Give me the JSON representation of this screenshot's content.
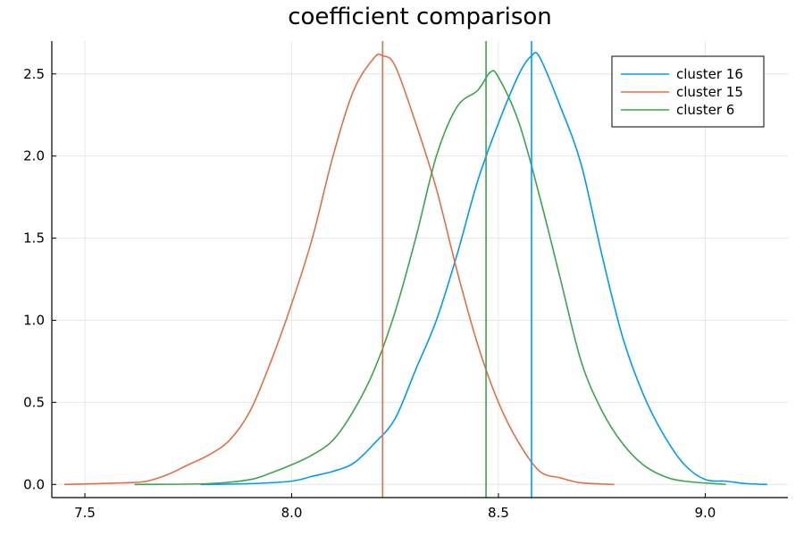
{
  "chart_data": {
    "type": "line",
    "title": "coefficient comparison",
    "xlabel": "",
    "ylabel": "",
    "xlim": [
      7.42,
      9.2
    ],
    "ylim": [
      -0.08,
      2.7
    ],
    "xticks": [
      7.5,
      8.0,
      8.5,
      9.0
    ],
    "xtick_labels": [
      "7.5",
      "8.0",
      "8.5",
      "9.0"
    ],
    "yticks": [
      0.0,
      0.5,
      1.0,
      1.5,
      2.0,
      2.5
    ],
    "ytick_labels": [
      "0.0",
      "0.5",
      "1.0",
      "1.5",
      "2.0",
      "2.5"
    ],
    "grid": true,
    "legend_position": "top-right",
    "series": [
      {
        "name": "cluster 16",
        "color": "#009AFA",
        "vline": 8.58,
        "points": [
          [
            7.78,
            0.0
          ],
          [
            7.9,
            0.005
          ],
          [
            8.0,
            0.02
          ],
          [
            8.05,
            0.05
          ],
          [
            8.1,
            0.08
          ],
          [
            8.15,
            0.13
          ],
          [
            8.2,
            0.25
          ],
          [
            8.25,
            0.4
          ],
          [
            8.3,
            0.7
          ],
          [
            8.35,
            1.0
          ],
          [
            8.4,
            1.4
          ],
          [
            8.45,
            1.85
          ],
          [
            8.5,
            2.2
          ],
          [
            8.55,
            2.5
          ],
          [
            8.58,
            2.61
          ],
          [
            8.6,
            2.6
          ],
          [
            8.65,
            2.3
          ],
          [
            8.7,
            1.95
          ],
          [
            8.75,
            1.4
          ],
          [
            8.8,
            0.9
          ],
          [
            8.85,
            0.55
          ],
          [
            8.9,
            0.3
          ],
          [
            8.95,
            0.12
          ],
          [
            9.0,
            0.03
          ],
          [
            9.05,
            0.02
          ],
          [
            9.1,
            0.005
          ],
          [
            9.15,
            0.0
          ]
        ]
      },
      {
        "name": "cluster 15",
        "color": "#E26F46",
        "vline": 8.22,
        "points": [
          [
            7.45,
            0.0
          ],
          [
            7.6,
            0.01
          ],
          [
            7.65,
            0.02
          ],
          [
            7.7,
            0.06
          ],
          [
            7.75,
            0.12
          ],
          [
            7.8,
            0.18
          ],
          [
            7.85,
            0.27
          ],
          [
            7.9,
            0.45
          ],
          [
            7.95,
            0.75
          ],
          [
            8.0,
            1.1
          ],
          [
            8.05,
            1.5
          ],
          [
            8.1,
            2.0
          ],
          [
            8.15,
            2.4
          ],
          [
            8.2,
            2.6
          ],
          [
            8.22,
            2.61
          ],
          [
            8.25,
            2.55
          ],
          [
            8.3,
            2.2
          ],
          [
            8.35,
            1.8
          ],
          [
            8.4,
            1.3
          ],
          [
            8.45,
            0.85
          ],
          [
            8.5,
            0.5
          ],
          [
            8.55,
            0.25
          ],
          [
            8.6,
            0.08
          ],
          [
            8.65,
            0.04
          ],
          [
            8.7,
            0.01
          ],
          [
            8.78,
            0.0
          ]
        ]
      },
      {
        "name": "cluster 6",
        "color": "#3DA44D",
        "vline": 8.47,
        "points": [
          [
            7.62,
            0.0
          ],
          [
            7.8,
            0.005
          ],
          [
            7.9,
            0.03
          ],
          [
            7.95,
            0.07
          ],
          [
            8.0,
            0.12
          ],
          [
            8.05,
            0.18
          ],
          [
            8.1,
            0.27
          ],
          [
            8.15,
            0.45
          ],
          [
            8.2,
            0.7
          ],
          [
            8.25,
            1.05
          ],
          [
            8.3,
            1.5
          ],
          [
            8.35,
            2.0
          ],
          [
            8.4,
            2.3
          ],
          [
            8.45,
            2.4
          ],
          [
            8.48,
            2.51
          ],
          [
            8.5,
            2.48
          ],
          [
            8.55,
            2.2
          ],
          [
            8.6,
            1.75
          ],
          [
            8.65,
            1.25
          ],
          [
            8.7,
            0.75
          ],
          [
            8.75,
            0.45
          ],
          [
            8.8,
            0.25
          ],
          [
            8.85,
            0.12
          ],
          [
            8.9,
            0.05
          ],
          [
            8.95,
            0.02
          ],
          [
            9.05,
            0.0
          ]
        ]
      }
    ]
  }
}
